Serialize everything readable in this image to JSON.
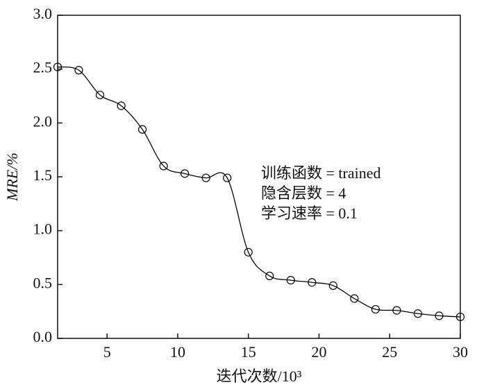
{
  "chart_data": {
    "type": "line",
    "x": [
      1.5,
      3,
      4.5,
      6,
      7.5,
      9,
      10.5,
      12,
      13.5,
      15,
      16.5,
      18,
      19.5,
      21,
      22.5,
      24,
      25.5,
      27,
      28.5,
      30
    ],
    "values": [
      2.52,
      2.49,
      2.26,
      2.16,
      1.94,
      1.6,
      1.53,
      1.49,
      1.49,
      0.8,
      0.58,
      0.54,
      0.52,
      0.49,
      0.37,
      0.27,
      0.26,
      0.23,
      0.21,
      0.2
    ],
    "color": "#000000",
    "xlim": [
      1.5,
      30
    ],
    "xticks": [
      5,
      10,
      15,
      20,
      25,
      30
    ],
    "ylim": [
      0,
      3
    ],
    "yticks": [
      {
        "value": 0,
        "label": "0.0"
      },
      {
        "value": 0.5,
        "label": "0.5"
      },
      {
        "value": 1,
        "label": "1.0"
      },
      {
        "value": 1.5,
        "label": "1.5"
      },
      {
        "value": 2,
        "label": "2.0"
      },
      {
        "value": 2.5,
        "label": "2.5"
      },
      {
        "value": 3,
        "label": "3.0"
      }
    ],
    "xlabel": "迭代次数/10³",
    "ylabel": "MRE/%",
    "annotations": [
      "训练函数 = trained",
      "隐含层数 = 4",
      "学习速率 = 0.1"
    ]
  }
}
